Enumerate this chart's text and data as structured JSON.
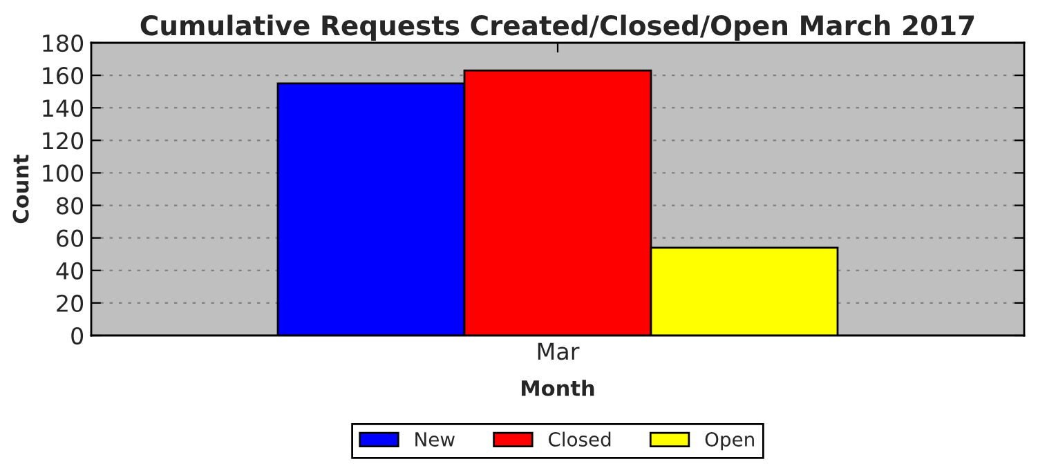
{
  "chart_data": {
    "type": "bar",
    "title": "Cumulative Requests Created/Closed/Open March 2017",
    "xlabel": "Month",
    "ylabel": "Count",
    "categories": [
      "Mar"
    ],
    "series": [
      {
        "name": "New",
        "color": "#0000ff",
        "values": [
          155
        ]
      },
      {
        "name": "Closed",
        "color": "#ff0000",
        "values": [
          163
        ]
      },
      {
        "name": "Open",
        "color": "#ffff00",
        "values": [
          54
        ]
      }
    ],
    "ylim": [
      0,
      180
    ],
    "yticks": [
      0,
      20,
      40,
      60,
      80,
      100,
      120,
      140,
      160,
      180
    ],
    "grid": "y",
    "legend": "bottom"
  }
}
